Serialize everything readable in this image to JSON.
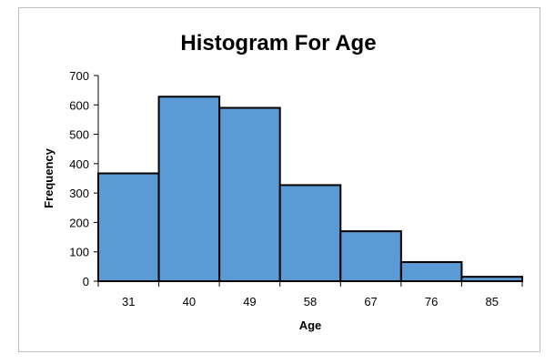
{
  "chart_data": {
    "type": "bar",
    "title": "Histogram For Age",
    "xlabel": "Age",
    "ylabel": "Frequency",
    "categories": [
      "31",
      "40",
      "49",
      "58",
      "67",
      "76",
      "85"
    ],
    "values": [
      367,
      628,
      590,
      327,
      170,
      65,
      15
    ],
    "yticks": [
      0,
      100,
      200,
      300,
      400,
      500,
      600,
      700
    ],
    "ylim": [
      0,
      700
    ],
    "grid": false,
    "legend": "none",
    "bar_color": "#5b9bd5",
    "bar_edge_color": "#000000"
  }
}
